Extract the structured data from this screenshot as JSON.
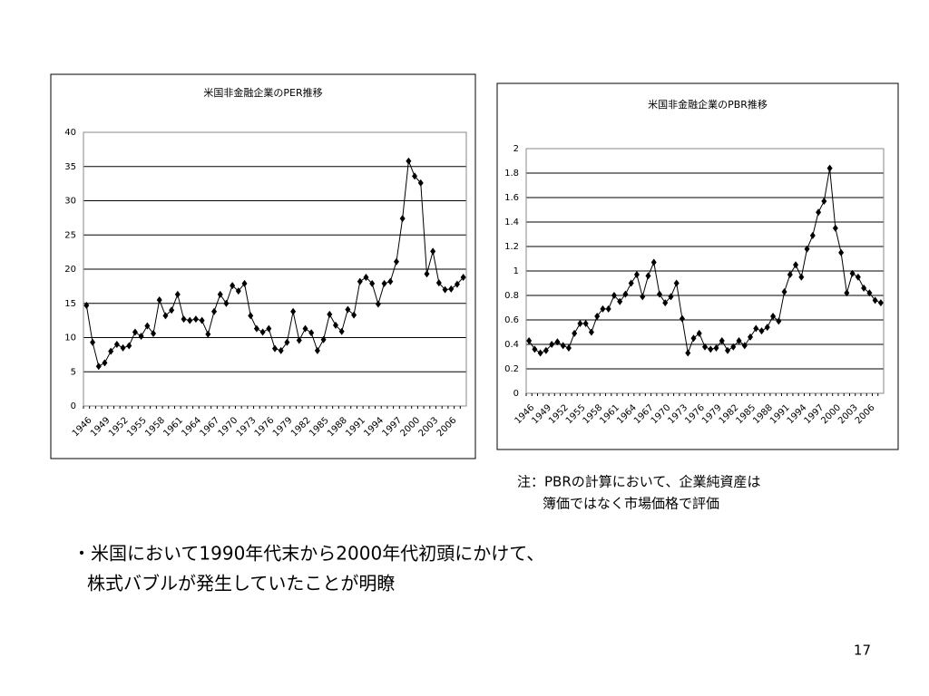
{
  "chart_data": [
    {
      "type": "line",
      "title": "米国非金融企業のPER推移",
      "categories": [
        "1946",
        null,
        null,
        "1949",
        null,
        null,
        "1952",
        null,
        null,
        "1955",
        null,
        null,
        "1958",
        null,
        null,
        "1961",
        null,
        null,
        "1964",
        null,
        null,
        "1967",
        null,
        null,
        "1970",
        null,
        null,
        "1973",
        null,
        null,
        "1976",
        null,
        null,
        "1979",
        null,
        null,
        "1982",
        null,
        null,
        "1985",
        null,
        null,
        "1988",
        null,
        null,
        "1991",
        null,
        null,
        "1994",
        null,
        null,
        "1997",
        null,
        null,
        "2000",
        null,
        null,
        "2003",
        null,
        null,
        "2006",
        null,
        null
      ],
      "values": [
        14.7,
        9.3,
        5.8,
        6.3,
        8.0,
        9.0,
        8.5,
        8.8,
        10.8,
        10.2,
        11.7,
        10.6,
        15.5,
        13.2,
        14.0,
        16.3,
        12.7,
        12.5,
        12.7,
        12.5,
        10.5,
        13.8,
        16.3,
        15.0,
        17.6,
        16.8,
        17.9,
        13.2,
        11.3,
        10.8,
        11.3,
        8.4,
        8.1,
        9.3,
        13.8,
        9.6,
        11.3,
        10.7,
        8.1,
        9.7,
        13.4,
        11.8,
        10.9,
        14.1,
        13.3,
        18.2,
        18.8,
        17.9,
        14.9,
        17.9,
        18.2,
        21.1,
        27.4,
        35.8,
        33.6,
        32.6,
        19.3,
        22.6,
        18.0,
        17.0,
        17.1,
        17.8,
        18.8
      ],
      "color": "#000000",
      "ylim": [
        0,
        40
      ],
      "yticks": [
        0,
        5,
        10,
        15,
        20,
        25,
        30,
        35,
        40
      ],
      "grid": true
    },
    {
      "type": "line",
      "title": "米国非金融企業のPBR推移",
      "categories": [
        "1946",
        null,
        null,
        "1949",
        null,
        null,
        "1952",
        null,
        null,
        "1955",
        null,
        null,
        "1958",
        null,
        null,
        "1961",
        null,
        null,
        "1964",
        null,
        null,
        "1967",
        null,
        null,
        "1970",
        null,
        null,
        "1973",
        null,
        null,
        "1976",
        null,
        null,
        "1979",
        null,
        null,
        "1982",
        null,
        null,
        "1985",
        null,
        null,
        "1988",
        null,
        null,
        "1991",
        null,
        null,
        "1994",
        null,
        null,
        "1997",
        null,
        null,
        "2000",
        null,
        null,
        "2003",
        null,
        null,
        "2006",
        null,
        null
      ],
      "values": [
        0.43,
        0.36,
        0.33,
        0.35,
        0.4,
        0.42,
        0.39,
        0.37,
        0.49,
        0.57,
        0.57,
        0.5,
        0.63,
        0.69,
        0.69,
        0.8,
        0.75,
        0.81,
        0.9,
        0.97,
        0.79,
        0.96,
        1.07,
        0.81,
        0.74,
        0.79,
        0.9,
        0.61,
        0.33,
        0.45,
        0.49,
        0.38,
        0.36,
        0.37,
        0.43,
        0.35,
        0.38,
        0.43,
        0.39,
        0.46,
        0.53,
        0.51,
        0.54,
        0.63,
        0.59,
        0.83,
        0.97,
        1.05,
        0.95,
        1.18,
        1.29,
        1.48,
        1.57,
        1.84,
        1.35,
        1.15,
        0.82,
        0.98,
        0.95,
        0.86,
        0.82,
        0.76,
        0.74
      ],
      "color": "#000000",
      "ylim": [
        0,
        2
      ],
      "yticks": [
        0,
        0.2,
        0.4,
        0.6,
        0.8,
        1,
        1.2,
        1.4,
        1.6,
        1.8,
        2
      ],
      "grid": true
    }
  ],
  "note": [
    "注：PBRの計算において、企業純資産は",
    "簿価ではなく市場価格で評価"
  ],
  "bullet": [
    "・米国において1990年代末から2000年代初頭にかけて、",
    "株式バブルが発生していたことが明瞭"
  ],
  "page_number": "17"
}
